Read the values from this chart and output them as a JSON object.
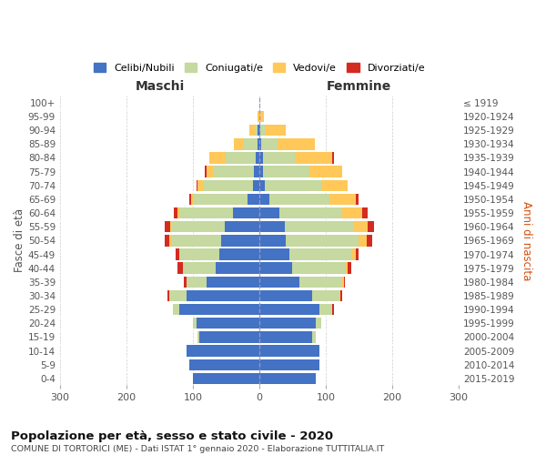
{
  "age_groups": [
    "0-4",
    "5-9",
    "10-14",
    "15-19",
    "20-24",
    "25-29",
    "30-34",
    "35-39",
    "40-44",
    "45-49",
    "50-54",
    "55-59",
    "60-64",
    "65-69",
    "70-74",
    "75-79",
    "80-84",
    "85-89",
    "90-94",
    "95-99",
    "100+"
  ],
  "birth_years": [
    "2015-2019",
    "2010-2014",
    "2005-2009",
    "2000-2004",
    "1995-1999",
    "1990-1994",
    "1985-1989",
    "1980-1984",
    "1975-1979",
    "1970-1974",
    "1965-1969",
    "1960-1964",
    "1955-1959",
    "1950-1954",
    "1945-1949",
    "1940-1944",
    "1935-1939",
    "1930-1934",
    "1925-1929",
    "1920-1924",
    "≤ 1919"
  ],
  "males": {
    "celibi": [
      100,
      105,
      110,
      90,
      95,
      120,
      110,
      80,
      65,
      60,
      58,
      52,
      40,
      18,
      10,
      8,
      5,
      3,
      2,
      0,
      0
    ],
    "coniugati": [
      0,
      0,
      0,
      3,
      5,
      10,
      25,
      30,
      50,
      60,
      75,
      80,
      80,
      80,
      75,
      60,
      45,
      20,
      5,
      0,
      0
    ],
    "vedovi": [
      0,
      0,
      0,
      0,
      0,
      0,
      0,
      0,
      0,
      1,
      2,
      2,
      3,
      5,
      8,
      12,
      25,
      15,
      8,
      2,
      0
    ],
    "divorziati": [
      0,
      0,
      0,
      0,
      0,
      0,
      3,
      3,
      8,
      5,
      8,
      8,
      5,
      2,
      2,
      2,
      0,
      0,
      0,
      0,
      0
    ]
  },
  "females": {
    "nubili": [
      85,
      90,
      90,
      80,
      85,
      90,
      80,
      60,
      50,
      45,
      40,
      38,
      30,
      15,
      8,
      5,
      5,
      3,
      2,
      0,
      0
    ],
    "coniugate": [
      0,
      0,
      0,
      5,
      8,
      20,
      40,
      65,
      80,
      95,
      110,
      105,
      95,
      90,
      85,
      70,
      50,
      25,
      8,
      2,
      0
    ],
    "vedove": [
      0,
      0,
      0,
      0,
      0,
      0,
      2,
      2,
      3,
      5,
      12,
      20,
      30,
      40,
      40,
      50,
      55,
      55,
      30,
      5,
      0
    ],
    "divorziate": [
      0,
      0,
      0,
      0,
      0,
      3,
      3,
      2,
      5,
      5,
      8,
      10,
      8,
      5,
      0,
      0,
      3,
      0,
      0,
      0,
      0
    ]
  },
  "colors": {
    "celibi": "#4472c4",
    "coniugati": "#c5d9a0",
    "vedovi": "#ffc859",
    "divorziati": "#d42b20"
  },
  "xlim": 300,
  "title": "Popolazione per età, sesso e stato civile - 2020",
  "subtitle": "COMUNE DI TORTORICI (ME) - Dati ISTAT 1° gennaio 2020 - Elaborazione TUTTITALIA.IT",
  "ylabel_left": "Fasce di età",
  "ylabel_right": "Anni di nascita",
  "xlabel_left": "Maschi",
  "xlabel_right": "Femmine",
  "legend_labels": [
    "Celibi/Nubili",
    "Coniugati/e",
    "Vedovi/e",
    "Divorziati/e"
  ]
}
